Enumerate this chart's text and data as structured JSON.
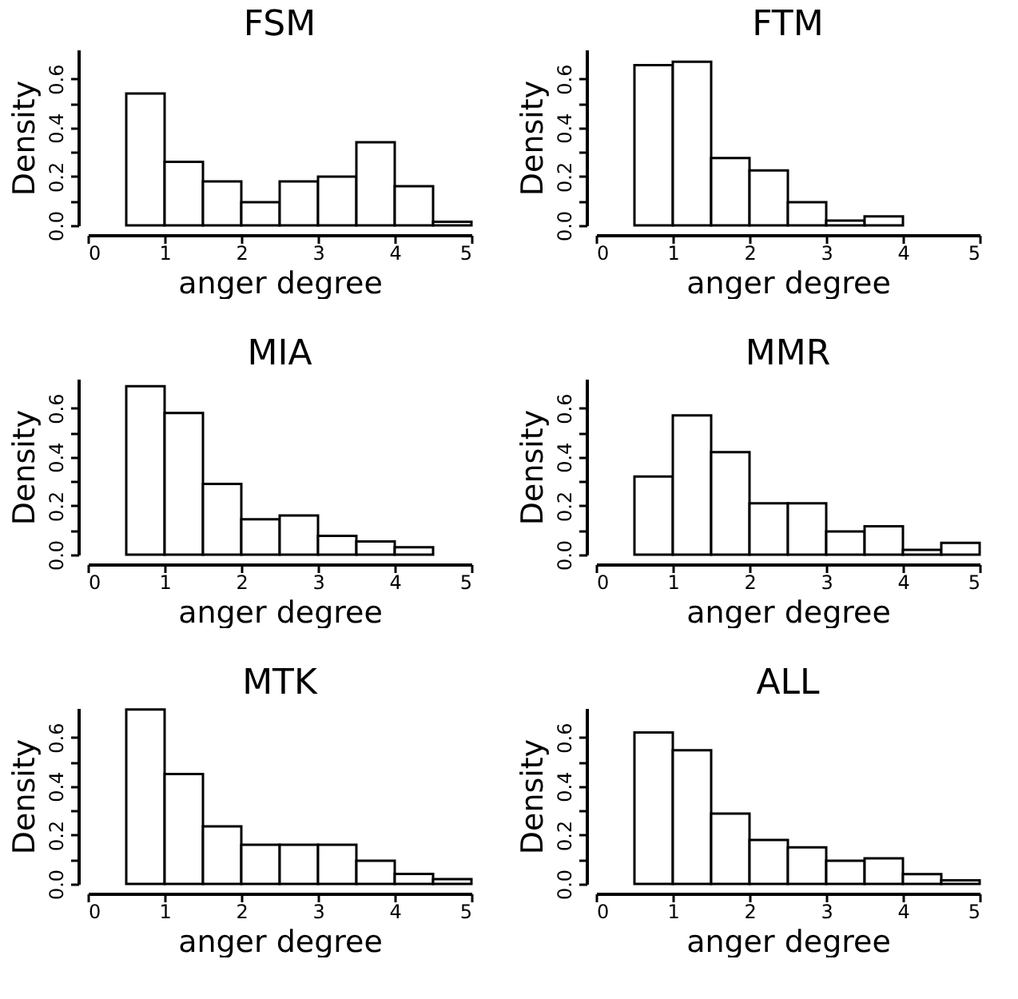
{
  "chart_data": [
    {
      "type": "histogram",
      "title": "FSM",
      "xlabel": "anger degree",
      "ylabel": "Density",
      "bins": [
        0.5,
        1,
        1.5,
        2,
        2.5,
        3,
        3.5,
        4,
        4.5,
        5
      ],
      "values": [
        0.54,
        0.26,
        0.18,
        0.095,
        0.18,
        0.2,
        0.34,
        0.16,
        0.015
      ],
      "xlim": [
        0,
        5
      ],
      "xticks": [
        0,
        1,
        2,
        3,
        4,
        5
      ],
      "ylim": [
        0,
        0.72
      ],
      "yticks": [
        {
          "value": 0,
          "label": "0.0"
        },
        {
          "value": 0.1,
          "label": null
        },
        {
          "value": 0.2,
          "label": "0.2"
        },
        {
          "value": 0.3,
          "label": null
        },
        {
          "value": 0.4,
          "label": "0.4"
        },
        {
          "value": 0.5,
          "label": null
        },
        {
          "value": 0.6,
          "label": "0.6"
        }
      ]
    },
    {
      "type": "histogram",
      "title": "FTM",
      "xlabel": "anger degree",
      "ylabel": "Density",
      "bins": [
        0.5,
        1,
        1.5,
        2,
        2.5,
        3,
        3.5,
        4
      ],
      "values": [
        0.656,
        0.67,
        0.276,
        0.225,
        0.095,
        0.02,
        0.037
      ],
      "xlim": [
        0,
        5
      ],
      "xticks": [
        0,
        1,
        2,
        3,
        4,
        5
      ],
      "ylim": [
        0,
        0.72
      ],
      "yticks": [
        {
          "value": 0,
          "label": "0.0"
        },
        {
          "value": 0.1,
          "label": null
        },
        {
          "value": 0.2,
          "label": "0.2"
        },
        {
          "value": 0.3,
          "label": null
        },
        {
          "value": 0.4,
          "label": "0.4"
        },
        {
          "value": 0.5,
          "label": null
        },
        {
          "value": 0.6,
          "label": "0.6"
        }
      ]
    },
    {
      "type": "histogram",
      "title": "MIA",
      "xlabel": "anger degree",
      "ylabel": "Density",
      "bins": [
        0.5,
        1,
        1.5,
        2,
        2.5,
        3,
        3.5,
        4,
        4.5
      ],
      "values": [
        0.69,
        0.58,
        0.29,
        0.145,
        0.16,
        0.077,
        0.054,
        0.03
      ],
      "xlim": [
        0,
        5
      ],
      "xticks": [
        0,
        1,
        2,
        3,
        4,
        5
      ],
      "ylim": [
        0,
        0.72
      ],
      "yticks": [
        {
          "value": 0,
          "label": "0.0"
        },
        {
          "value": 0.1,
          "label": null
        },
        {
          "value": 0.2,
          "label": "0.2"
        },
        {
          "value": 0.3,
          "label": null
        },
        {
          "value": 0.4,
          "label": "0.4"
        },
        {
          "value": 0.5,
          "label": null
        },
        {
          "value": 0.6,
          "label": "0.6"
        }
      ]
    },
    {
      "type": "histogram",
      "title": "MMR",
      "xlabel": "anger degree",
      "ylabel": "Density",
      "bins": [
        0.5,
        1,
        1.5,
        2,
        2.5,
        3,
        3.5,
        4,
        4.5,
        5
      ],
      "values": [
        0.32,
        0.57,
        0.42,
        0.21,
        0.21,
        0.095,
        0.116,
        0.02,
        0.048
      ],
      "xlim": [
        0,
        5
      ],
      "xticks": [
        0,
        1,
        2,
        3,
        4,
        5
      ],
      "ylim": [
        0,
        0.72
      ],
      "yticks": [
        {
          "value": 0,
          "label": "0.0"
        },
        {
          "value": 0.1,
          "label": null
        },
        {
          "value": 0.2,
          "label": "0.2"
        },
        {
          "value": 0.3,
          "label": null
        },
        {
          "value": 0.4,
          "label": "0.4"
        },
        {
          "value": 0.5,
          "label": null
        },
        {
          "value": 0.6,
          "label": "0.6"
        }
      ]
    },
    {
      "type": "histogram",
      "title": "MTK",
      "xlabel": "anger degree",
      "ylabel": "Density",
      "bins": [
        0.5,
        1,
        1.5,
        2,
        2.5,
        3,
        3.5,
        4,
        4.5,
        5
      ],
      "values": [
        0.714,
        0.45,
        0.236,
        0.16,
        0.16,
        0.16,
        0.095,
        0.041,
        0.02
      ],
      "xlim": [
        0,
        5
      ],
      "xticks": [
        0,
        1,
        2,
        3,
        4,
        5
      ],
      "ylim": [
        0,
        0.72
      ],
      "yticks": [
        {
          "value": 0,
          "label": "0.0"
        },
        {
          "value": 0.1,
          "label": null
        },
        {
          "value": 0.2,
          "label": "0.2"
        },
        {
          "value": 0.3,
          "label": null
        },
        {
          "value": 0.4,
          "label": "0.4"
        },
        {
          "value": 0.5,
          "label": null
        },
        {
          "value": 0.6,
          "label": "0.6"
        }
      ]
    },
    {
      "type": "histogram",
      "title": "ALL",
      "xlabel": "anger degree",
      "ylabel": "Density",
      "bins": [
        0.5,
        1,
        1.5,
        2,
        2.5,
        3,
        3.5,
        4,
        4.5,
        5
      ],
      "values": [
        0.62,
        0.547,
        0.288,
        0.18,
        0.15,
        0.095,
        0.105,
        0.04,
        0.015
      ],
      "xlim": [
        0,
        5
      ],
      "xticks": [
        0,
        1,
        2,
        3,
        4,
        5
      ],
      "ylim": [
        0,
        0.72
      ],
      "yticks": [
        {
          "value": 0,
          "label": "0.0"
        },
        {
          "value": 0.1,
          "label": null
        },
        {
          "value": 0.2,
          "label": "0.2"
        },
        {
          "value": 0.3,
          "label": null
        },
        {
          "value": 0.4,
          "label": "0.4"
        },
        {
          "value": 0.5,
          "label": null
        },
        {
          "value": 0.6,
          "label": "0.6"
        }
      ]
    }
  ]
}
